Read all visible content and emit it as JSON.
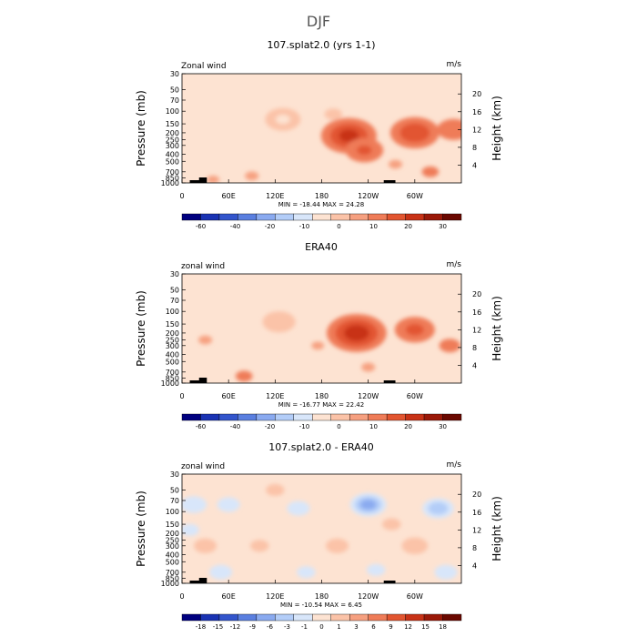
{
  "figure": {
    "title": "DJF"
  },
  "chart_data": [
    {
      "type": "heatmap",
      "title": "107.splat2.0 (yrs 1-1)",
      "left_label": "Zonal wind",
      "right_label": "m/s",
      "ylabel": "Pressure (mb)",
      "ylabel_right": "Height (km)",
      "x_ticks": [
        "0",
        "60E",
        "120E",
        "180",
        "120W",
        "60W"
      ],
      "x_range": [
        0,
        360
      ],
      "y_ticks": [
        "30",
        "50",
        "70",
        "100",
        "150",
        "200",
        "250",
        "300",
        "400",
        "500",
        "700",
        "850",
        "1000"
      ],
      "y_range_mb": [
        1000,
        30
      ],
      "y_scale": "log",
      "height_ticks": [
        "4",
        "8",
        "12",
        "16",
        "20"
      ],
      "stats": "MIN = -18.44   MAX =  24.28",
      "colorbar_labels": [
        "-60",
        "-40",
        "-20",
        "-10",
        "0",
        "10",
        "20",
        "30"
      ],
      "colorbar_colors": [
        "#00007f",
        "#1a33b3",
        "#3355cc",
        "#5a7fe0",
        "#8aaaf0",
        "#b3cdf8",
        "#d8e6fa",
        "#fde3d2",
        "#fbc3a8",
        "#f6a080",
        "#ef7c58",
        "#e25530",
        "#c83216",
        "#9a1808",
        "#6a0800"
      ],
      "features": [
        {
          "lon": 40,
          "p": 900,
          "value": -3
        },
        {
          "lon": 90,
          "p": 800,
          "value": 2
        },
        {
          "lon": 130,
          "p": 130,
          "value": -12
        },
        {
          "lon": 195,
          "p": 110,
          "value": -6
        },
        {
          "lon": 215,
          "p": 220,
          "value": 18
        },
        {
          "lon": 235,
          "p": 350,
          "value": 10
        },
        {
          "lon": 275,
          "p": 550,
          "value": -2
        },
        {
          "lon": 300,
          "p": 200,
          "value": 15
        },
        {
          "lon": 320,
          "p": 700,
          "value": 3
        },
        {
          "lon": 350,
          "p": 180,
          "value": 8
        }
      ]
    },
    {
      "type": "heatmap",
      "title": "ERA40",
      "left_label": "zonal wind",
      "right_label": "m/s",
      "ylabel": "Pressure (mb)",
      "ylabel_right": "Height (km)",
      "x_ticks": [
        "0",
        "60E",
        "120E",
        "180",
        "120W",
        "60W"
      ],
      "x_range": [
        0,
        360
      ],
      "y_ticks": [
        "30",
        "50",
        "70",
        "100",
        "150",
        "200",
        "250",
        "300",
        "400",
        "500",
        "700",
        "850",
        "1000"
      ],
      "y_range_mb": [
        1000,
        30
      ],
      "y_scale": "log",
      "height_ticks": [
        "4",
        "8",
        "12",
        "16",
        "20"
      ],
      "stats": "MIN = -16.77   MAX =  22.42",
      "colorbar_labels": [
        "-60",
        "-40",
        "-20",
        "-10",
        "0",
        "10",
        "20",
        "30"
      ],
      "colorbar_colors": [
        "#00007f",
        "#1a33b3",
        "#3355cc",
        "#5a7fe0",
        "#8aaaf0",
        "#b3cdf8",
        "#d8e6fa",
        "#fde3d2",
        "#fbc3a8",
        "#f6a080",
        "#ef7c58",
        "#e25530",
        "#c83216",
        "#9a1808",
        "#6a0800"
      ],
      "features": [
        {
          "lon": 30,
          "p": 250,
          "value": -2
        },
        {
          "lon": 125,
          "p": 140,
          "value": -11
        },
        {
          "lon": 175,
          "p": 300,
          "value": -3
        },
        {
          "lon": 225,
          "p": 200,
          "value": 20
        },
        {
          "lon": 240,
          "p": 600,
          "value": 2
        },
        {
          "lon": 300,
          "p": 180,
          "value": 11
        },
        {
          "lon": 80,
          "p": 800,
          "value": 3
        },
        {
          "lon": 345,
          "p": 300,
          "value": 4
        }
      ]
    },
    {
      "type": "heatmap",
      "title": "107.splat2.0 - ERA40",
      "left_label": "zonal wind",
      "right_label": "m/s",
      "ylabel": "Pressure (mb)",
      "ylabel_right": "Height (km)",
      "x_ticks": [
        "0",
        "60E",
        "120E",
        "180",
        "120W",
        "60W"
      ],
      "x_range": [
        0,
        360
      ],
      "y_ticks": [
        "30",
        "50",
        "70",
        "100",
        "150",
        "200",
        "250",
        "300",
        "400",
        "500",
        "700",
        "850",
        "1000"
      ],
      "y_range_mb": [
        1000,
        30
      ],
      "y_scale": "log",
      "height_ticks": [
        "4",
        "8",
        "12",
        "16",
        "20"
      ],
      "stats": "MIN = -10.54   MAX =   6.45",
      "colorbar_labels": [
        "-18",
        "-15",
        "-12",
        "-9",
        "-6",
        "-3",
        "-1",
        "0",
        "1",
        "3",
        "6",
        "9",
        "12",
        "15",
        "18"
      ],
      "colorbar_colors": [
        "#00007f",
        "#1a33b3",
        "#3355cc",
        "#5a7fe0",
        "#8aaaf0",
        "#b3cdf8",
        "#d8e6fa",
        "#fde3d2",
        "#fbc3a8",
        "#f6a080",
        "#ef7c58",
        "#e25530",
        "#c83216",
        "#9a1808",
        "#6a0800"
      ],
      "features": [
        {
          "lon": 15,
          "p": 80,
          "value": -4
        },
        {
          "lon": 60,
          "p": 80,
          "value": -3
        },
        {
          "lon": 150,
          "p": 90,
          "value": -3
        },
        {
          "lon": 240,
          "p": 80,
          "value": -8
        },
        {
          "lon": 330,
          "p": 90,
          "value": -6
        },
        {
          "lon": 30,
          "p": 300,
          "value": 3
        },
        {
          "lon": 100,
          "p": 300,
          "value": 2
        },
        {
          "lon": 200,
          "p": 300,
          "value": 3
        },
        {
          "lon": 300,
          "p": 300,
          "value": 4
        },
        {
          "lon": 50,
          "p": 700,
          "value": -3
        },
        {
          "lon": 160,
          "p": 700,
          "value": -2
        },
        {
          "lon": 250,
          "p": 650,
          "value": -2
        },
        {
          "lon": 340,
          "p": 700,
          "value": -3
        },
        {
          "lon": 10,
          "p": 180,
          "value": -2
        },
        {
          "lon": 120,
          "p": 50,
          "value": 2
        },
        {
          "lon": 270,
          "p": 150,
          "value": 2
        }
      ]
    }
  ]
}
